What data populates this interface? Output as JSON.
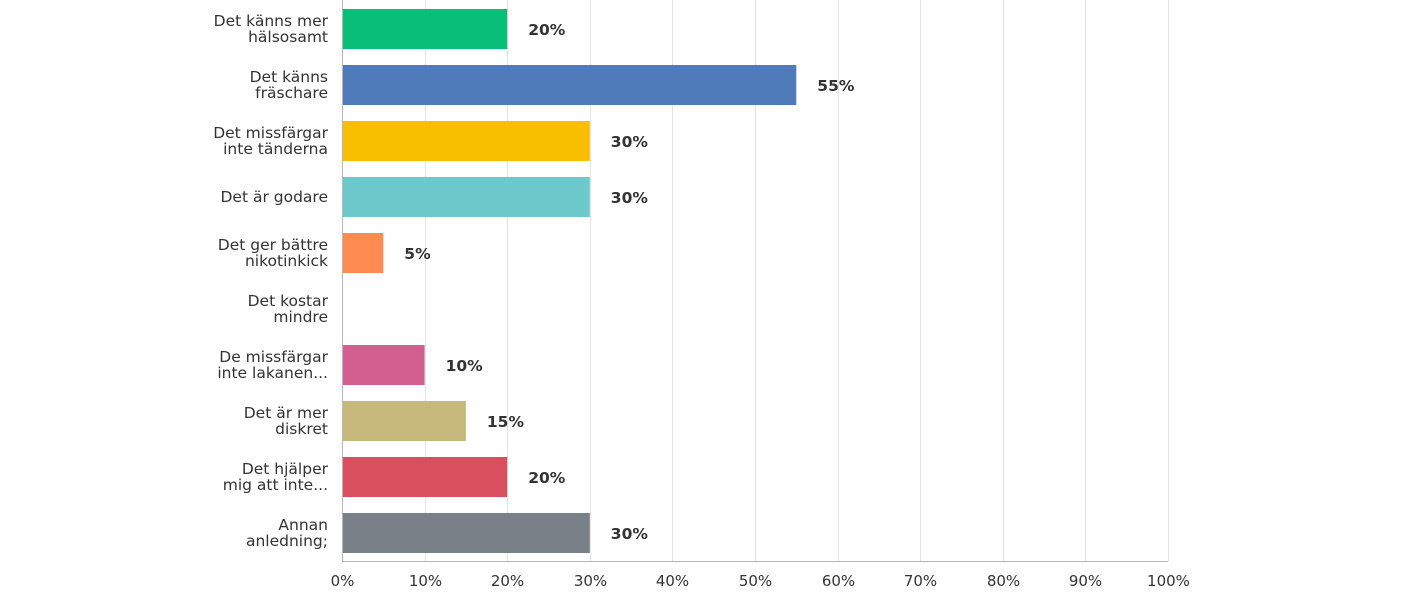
{
  "chart_data": {
    "type": "bar",
    "orientation": "horizontal",
    "title": "",
    "xlabel": "",
    "ylabel": "",
    "xlim": [
      0,
      100
    ],
    "grid": true,
    "value_format": "percent",
    "ticks": [
      "0%",
      "10%",
      "20%",
      "30%",
      "40%",
      "50%",
      "60%",
      "70%",
      "80%",
      "90%",
      "100%"
    ],
    "categories": [
      [
        "Det känns mer",
        "hälsosamt"
      ],
      [
        "Det känns",
        "fräschare"
      ],
      [
        "Det missfärgar",
        "inte tänderna"
      ],
      [
        "Det är godare"
      ],
      [
        "Det ger bättre",
        "nikotinkick"
      ],
      [
        "Det kostar",
        "mindre"
      ],
      [
        "De missfärgar",
        "inte lakanen..."
      ],
      [
        "Det är mer",
        "diskret"
      ],
      [
        "Det hjälper",
        "mig att inte..."
      ],
      [
        "Annan",
        "anledning;"
      ]
    ],
    "values": [
      20,
      55,
      30,
      30,
      5,
      0,
      10,
      15,
      20,
      30
    ],
    "value_labels": [
      "20%",
      "55%",
      "30%",
      "30%",
      "5%",
      "",
      "10%",
      "15%",
      "20%",
      "30%"
    ],
    "colors": [
      "#08bf78",
      "#507bba",
      "#f8bf00",
      "#6ec9cc",
      "#fe8b51",
      "#999999",
      "#d35f90",
      "#c6b77b",
      "#d94f5d",
      "#7a8087"
    ]
  }
}
